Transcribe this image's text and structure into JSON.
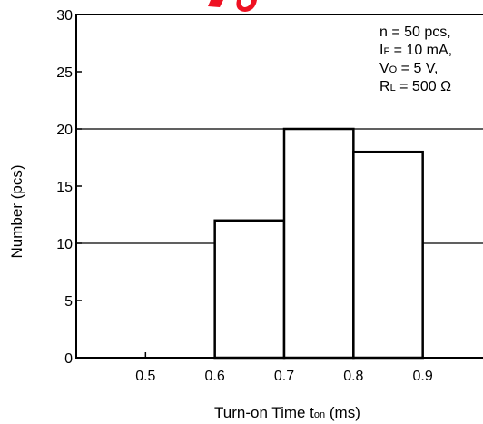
{
  "chart_data": {
    "type": "bar",
    "histogram": true,
    "bins": [
      {
        "start": 0.6,
        "end": 0.7,
        "value": 12
      },
      {
        "start": 0.7,
        "end": 0.8,
        "value": 20
      },
      {
        "start": 0.8,
        "end": 0.9,
        "value": 18
      }
    ],
    "xlim": [
      0.4,
      1.0
    ],
    "ylim": [
      0,
      30
    ],
    "xticks": [
      {
        "value": 0.5,
        "label": "0.5"
      },
      {
        "value": 0.6,
        "label": "0.6"
      },
      {
        "value": 0.7,
        "label": "0.7"
      },
      {
        "value": 0.8,
        "label": "0.8"
      },
      {
        "value": 0.9,
        "label": "0.9"
      }
    ],
    "yticks": [
      {
        "value": 0,
        "label": "0"
      },
      {
        "value": 5,
        "label": "5"
      },
      {
        "value": 10,
        "label": "10"
      },
      {
        "value": 15,
        "label": "15"
      },
      {
        "value": 20,
        "label": "20"
      },
      {
        "value": 25,
        "label": "25"
      },
      {
        "value": 30,
        "label": "30"
      }
    ],
    "gridlines_y": [
      10,
      20
    ],
    "xlabel": {
      "main": "Turn-on Time  t",
      "sub": "on",
      "unit": " (ms)"
    },
    "ylabel": "Number  (pcs)",
    "annotation": [
      {
        "main": "n = 50 pcs,",
        "sub": "",
        "rest": ""
      },
      {
        "main": "I",
        "sub": "F",
        "rest": " = 10 mA,"
      },
      {
        "main": "V",
        "sub": "O",
        "rest": " = 5 V,"
      },
      {
        "main": "R",
        "sub": "L",
        "rest": " = 500 Ω"
      }
    ],
    "bar_color": "#ffffff",
    "stroke_color": "#000000",
    "watermark_color": "#ee1122"
  }
}
